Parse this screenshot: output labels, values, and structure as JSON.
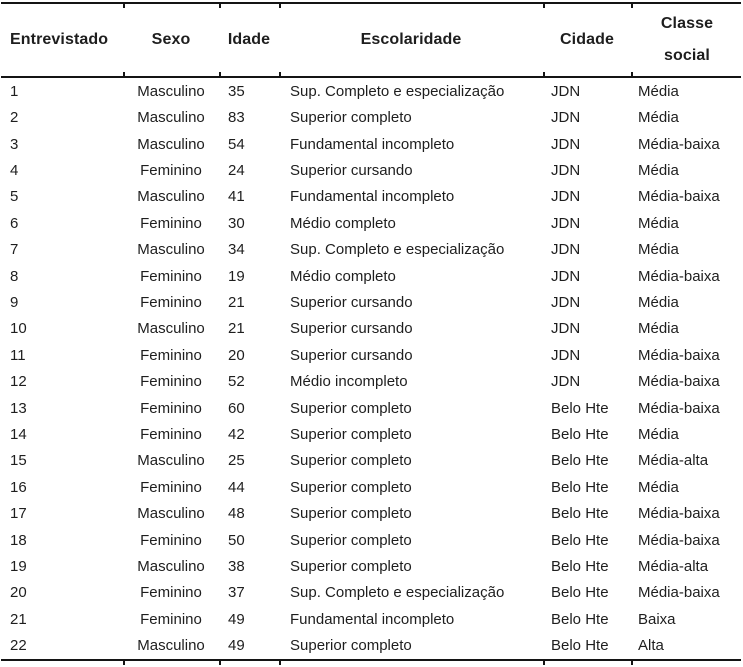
{
  "table": {
    "columns": [
      {
        "key": "entrevistado",
        "label": "Entrevistado"
      },
      {
        "key": "sexo",
        "label": "Sexo"
      },
      {
        "key": "idade",
        "label": "Idade"
      },
      {
        "key": "escolaridade",
        "label": "Escolaridade"
      },
      {
        "key": "cidade",
        "label": "Cidade"
      },
      {
        "key": "classe_social",
        "label": "Classe social",
        "label_line1": "Classe",
        "label_line2": "social"
      }
    ],
    "rows": [
      [
        "1",
        "Masculino",
        "35",
        "Sup. Completo e especialização",
        "JDN",
        "Média"
      ],
      [
        "2",
        "Masculino",
        "83",
        "Superior completo",
        "JDN",
        "Média"
      ],
      [
        "3",
        "Masculino",
        "54",
        "Fundamental incompleto",
        "JDN",
        "Média-baixa"
      ],
      [
        "4",
        "Feminino",
        "24",
        "Superior cursando",
        "JDN",
        "Média"
      ],
      [
        "5",
        "Masculino",
        "41",
        "Fundamental incompleto",
        "JDN",
        "Média-baixa"
      ],
      [
        "6",
        "Feminino",
        "30",
        "Médio completo",
        "JDN",
        "Média"
      ],
      [
        "7",
        "Masculino",
        "34",
        "Sup. Completo e especialização",
        "JDN",
        "Média"
      ],
      [
        "8",
        "Feminino",
        "19",
        "Médio completo",
        "JDN",
        "Média-baixa"
      ],
      [
        "9",
        "Feminino",
        "21",
        "Superior cursando",
        "JDN",
        "Média"
      ],
      [
        "10",
        "Masculino",
        "21",
        "Superior cursando",
        "JDN",
        "Média"
      ],
      [
        "11",
        "Feminino",
        "20",
        "Superior cursando",
        "JDN",
        "Média-baixa"
      ],
      [
        "12",
        "Feminino",
        "52",
        "Médio incompleto",
        "JDN",
        "Média-baixa"
      ],
      [
        "13",
        "Feminino",
        "60",
        "Superior completo",
        "Belo Hte",
        "Média-baixa"
      ],
      [
        "14",
        "Feminino",
        "42",
        "Superior completo",
        "Belo Hte",
        "Média"
      ],
      [
        "15",
        "Masculino",
        "25",
        "Superior completo",
        "Belo Hte",
        "Média-alta"
      ],
      [
        "16",
        "Feminino",
        "44",
        "Superior completo",
        "Belo Hte",
        "Média"
      ],
      [
        "17",
        "Masculino",
        "48",
        "Superior completo",
        "Belo Hte",
        "Média-baixa"
      ],
      [
        "18",
        "Feminino",
        "50",
        "Superior completo",
        "Belo Hte",
        "Média-baixa"
      ],
      [
        "19",
        "Masculino",
        "38",
        "Superior completo",
        "Belo Hte",
        "Média-alta"
      ],
      [
        "20",
        "Feminino",
        "37",
        "Sup. Completo e especialização",
        "Belo Hte",
        "Média-baixa"
      ],
      [
        "21",
        "Feminino",
        "49",
        "Fundamental incompleto",
        "Belo Hte",
        "Baixa"
      ],
      [
        "22",
        "Masculino",
        "49",
        "Superior completo",
        "Belo Hte",
        "Alta"
      ]
    ]
  },
  "colors": {
    "background": "#ffffff",
    "text": "#1e1e1e",
    "border": "#141414"
  }
}
